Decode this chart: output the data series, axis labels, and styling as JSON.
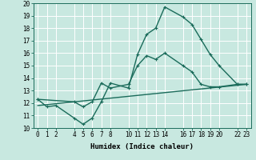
{
  "xlabel": "Humidex (Indice chaleur)",
  "bg_color": "#c8e8e0",
  "grid_color": "#ffffff",
  "line_color": "#1a6b5a",
  "ylim": [
    10,
    20
  ],
  "xlim": [
    -0.5,
    23.5
  ],
  "yticks": [
    10,
    11,
    12,
    13,
    14,
    15,
    16,
    17,
    18,
    19,
    20
  ],
  "xticks": [
    0,
    1,
    2,
    4,
    5,
    6,
    7,
    8,
    10,
    11,
    12,
    13,
    14,
    16,
    17,
    18,
    19,
    20,
    22,
    23
  ],
  "curve1_x": [
    0,
    1,
    2,
    4,
    5,
    6,
    7,
    8,
    10,
    11,
    12,
    13,
    14,
    16,
    17,
    18,
    19,
    20,
    22,
    23
  ],
  "curve1_y": [
    12.3,
    11.7,
    11.8,
    10.8,
    10.3,
    10.8,
    12.1,
    13.6,
    13.2,
    15.9,
    17.5,
    18.0,
    19.7,
    18.9,
    18.3,
    17.1,
    15.9,
    15.0,
    13.5,
    13.5
  ],
  "curve2_x": [
    0,
    4,
    5,
    6,
    7,
    8,
    10,
    11,
    12,
    13,
    14,
    16,
    17,
    18,
    19,
    20,
    22,
    23
  ],
  "curve2_y": [
    12.3,
    12.1,
    11.7,
    12.1,
    13.6,
    13.2,
    13.5,
    15.0,
    15.8,
    15.5,
    16.0,
    15.0,
    14.5,
    13.5,
    13.3,
    13.3,
    13.5,
    13.5
  ],
  "curve3_x": [
    0,
    23
  ],
  "curve3_y": [
    11.8,
    13.5
  ],
  "marker_size": 2.5,
  "line_width": 1.0
}
